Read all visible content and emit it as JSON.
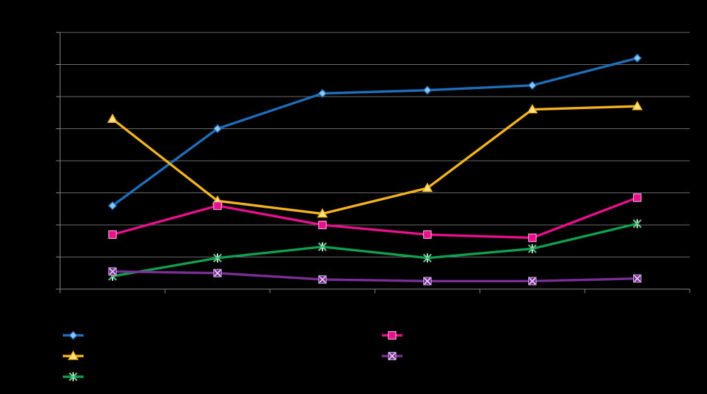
{
  "chart_data": {
    "type": "line",
    "title": "",
    "xlabel": "",
    "ylabel": "",
    "x": [
      1,
      2,
      3,
      4,
      5,
      6
    ],
    "ylim": [
      0,
      8
    ],
    "grid": true,
    "legend_position": "bottom",
    "series": [
      {
        "color": "#1f6fba",
        "marker": "diamond",
        "values": [
          2.6,
          5.0,
          6.1,
          6.2,
          6.35,
          7.2
        ]
      },
      {
        "color": "#f5b41e",
        "marker": "triangle",
        "values": [
          5.3,
          2.75,
          2.35,
          3.15,
          5.6,
          5.7
        ]
      },
      {
        "color": "#11a050",
        "marker": "star",
        "values": [
          0.4,
          0.97,
          1.32,
          0.97,
          1.26,
          2.04
        ]
      },
      {
        "color": "#e8108c",
        "marker": "square",
        "values": [
          1.7,
          2.6,
          2.0,
          1.7,
          1.6,
          2.85
        ]
      },
      {
        "color": "#7a2f96",
        "marker": "x",
        "values": [
          0.55,
          0.5,
          0.3,
          0.25,
          0.25,
          0.33
        ]
      }
    ]
  }
}
